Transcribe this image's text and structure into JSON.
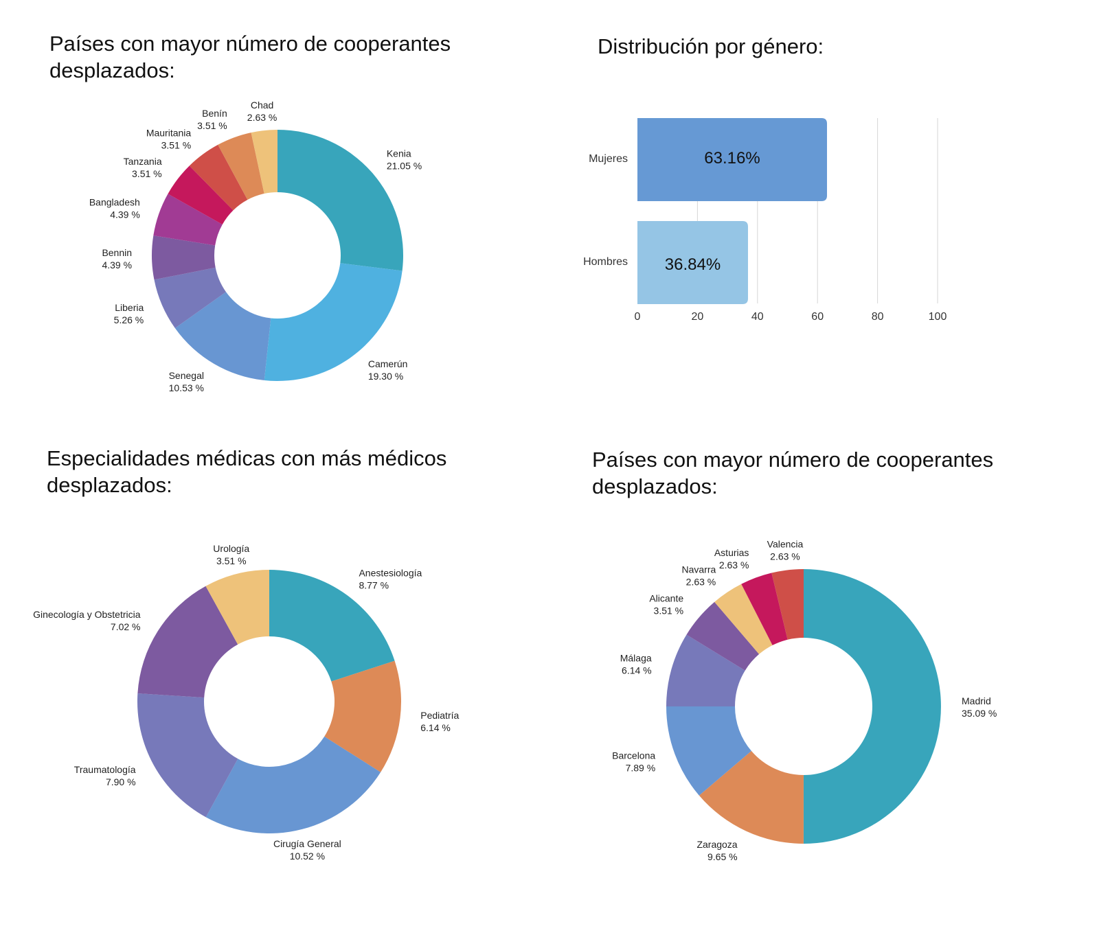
{
  "chart_data": [
    {
      "type": "pie",
      "title": "Países con mayor número de cooperantes desplazados:",
      "slices": [
        {
          "label": "Kenia",
          "value": 21.05,
          "value_text": "21.05 %",
          "color": "#38a5bb"
        },
        {
          "label": "Camerún",
          "value": 19.3,
          "value_text": "19.30 %",
          "color": "#4fb1e0"
        },
        {
          "label": "Senegal",
          "value": 10.53,
          "value_text": "10.53 %",
          "color": "#6896d2"
        },
        {
          "label": "Liberia",
          "value": 5.26,
          "value_text": "5.26 %",
          "color": "#7779ba"
        },
        {
          "label": "Bennin",
          "value": 4.39,
          "value_text": "4.39 %",
          "color": "#7d5aa0"
        },
        {
          "label": "Bangladesh",
          "value": 4.39,
          "value_text": "4.39 %",
          "color": "#a13b94"
        },
        {
          "label": "Tanzania",
          "value": 3.51,
          "value_text": "3.51 %",
          "color": "#c5185c"
        },
        {
          "label": "Mauritania",
          "value": 3.51,
          "value_text": "3.51 %",
          "color": "#cf4f48"
        },
        {
          "label": "Benín",
          "value": 3.51,
          "value_text": "3.51 %",
          "color": "#dd8a57"
        },
        {
          "label": "Chad",
          "value": 2.63,
          "value_text": "2.63 %",
          "color": "#eec27a"
        }
      ]
    },
    {
      "type": "bar",
      "orientation": "horizontal",
      "title": "Distribución por género:",
      "categories": [
        "Mujeres",
        "Hombres"
      ],
      "values": [
        63.16,
        36.84
      ],
      "value_labels": [
        "63.16%",
        "36.84%"
      ],
      "colors": [
        "#6699d4",
        "#95c5e5"
      ],
      "xlim": [
        0,
        100
      ],
      "xticks": [
        "0",
        "20",
        "40",
        "60",
        "80",
        "100"
      ],
      "grid": true
    },
    {
      "type": "pie",
      "title": "Especialidades médicas con más médicos desplazados:",
      "slices": [
        {
          "label": "Anestesiología",
          "value": 8.77,
          "value_text": "8.77 %",
          "color": "#38a5bb"
        },
        {
          "label": "Pediatría",
          "value": 6.14,
          "value_text": "6.14 %",
          "color": "#dd8a57"
        },
        {
          "label": "Cirugía General",
          "value": 10.52,
          "value_text": "10.52 %",
          "color": "#6896d2"
        },
        {
          "label": "Traumatología",
          "value": 7.9,
          "value_text": "7.90 %",
          "color": "#7779ba"
        },
        {
          "label": "Ginecología y Obstetricia",
          "value": 7.02,
          "value_text": "7.02 %",
          "color": "#7d5aa0"
        },
        {
          "label": "Urología",
          "value": 3.51,
          "value_text": "3.51 %",
          "color": "#eec27a"
        }
      ]
    },
    {
      "type": "pie",
      "title": "Países con mayor número de cooperantes desplazados:",
      "slices": [
        {
          "label": "Madrid",
          "value": 35.09,
          "value_text": "35.09 %",
          "color": "#38a5bb"
        },
        {
          "label": "Zaragoza",
          "value": 9.65,
          "value_text": "9.65 %",
          "color": "#dd8a57"
        },
        {
          "label": "Barcelona",
          "value": 7.89,
          "value_text": "7.89 %",
          "color": "#6896d2"
        },
        {
          "label": "Málaga",
          "value": 6.14,
          "value_text": "6.14 %",
          "color": "#7779ba"
        },
        {
          "label": "Alicante",
          "value": 3.51,
          "value_text": "3.51 %",
          "color": "#7d5aa0"
        },
        {
          "label": "Navarra",
          "value": 2.63,
          "value_text": "2.63 %",
          "color": "#eec27a"
        },
        {
          "label": "Asturias",
          "value": 2.63,
          "value_text": "2.63 %",
          "color": "#c5185c"
        },
        {
          "label": "Valencia",
          "value": 2.63,
          "value_text": "2.63 %",
          "color": "#cf4f48"
        }
      ]
    }
  ]
}
